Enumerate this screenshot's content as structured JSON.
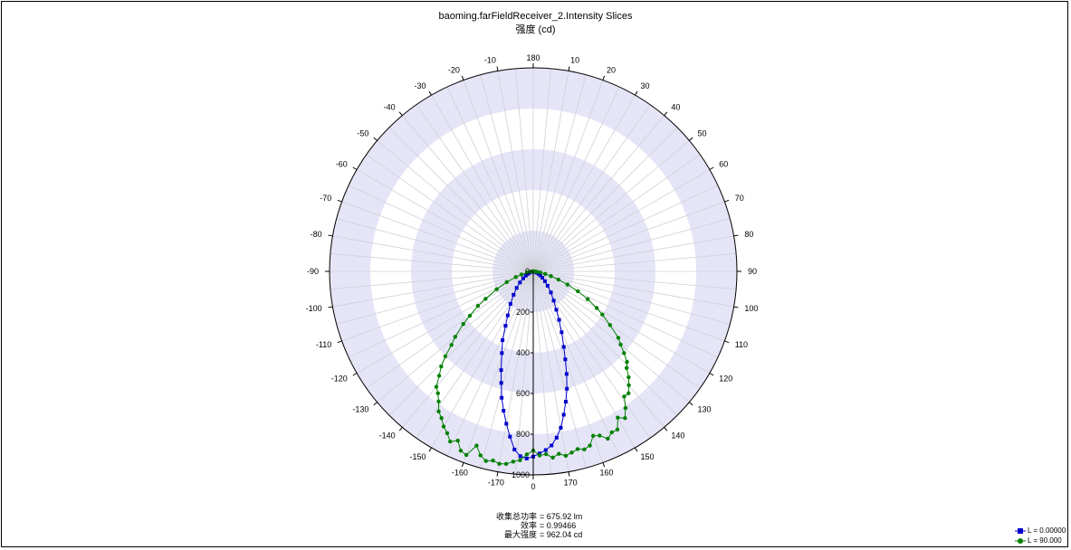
{
  "chart_data": {
    "type": "polar-line",
    "title": "baoming.farFieldReceiver_2.Intensity Slices",
    "subtitle": "强度 (cd)",
    "radial_ticks": [
      0,
      200,
      400,
      600,
      800,
      1000
    ],
    "radial_range": [
      0,
      1000
    ],
    "angle_ticks": [
      -170,
      -160,
      -150,
      -140,
      -130,
      -120,
      -110,
      -100,
      -90,
      -80,
      -70,
      -60,
      -50,
      -40,
      -30,
      -20,
      -10,
      0,
      10,
      20,
      30,
      40,
      50,
      60,
      70,
      80,
      90,
      100,
      110,
      120,
      130,
      140,
      150,
      160,
      170,
      180
    ],
    "grid": true,
    "legend_position": "bottom-right",
    "series": [
      {
        "name": "L = 0.00000",
        "color": "#0000cc",
        "marker": "square",
        "points": [
          [
            -90,
            0
          ],
          [
            -85,
            3
          ],
          [
            -80,
            7
          ],
          [
            -75,
            12
          ],
          [
            -70,
            20
          ],
          [
            -65,
            30
          ],
          [
            -60,
            42
          ],
          [
            -55,
            60
          ],
          [
            -50,
            85
          ],
          [
            -45,
            115
          ],
          [
            -40,
            150
          ],
          [
            -35,
            195
          ],
          [
            -30,
            250
          ],
          [
            -27,
            300
          ],
          [
            -24,
            370
          ],
          [
            -21,
            430
          ],
          [
            -18,
            510
          ],
          [
            -16,
            570
          ],
          [
            -14,
            640
          ],
          [
            -12,
            700
          ],
          [
            -10,
            760
          ],
          [
            -8,
            820
          ],
          [
            -6,
            880
          ],
          [
            -4,
            910
          ],
          [
            -2,
            920
          ],
          [
            0,
            910
          ],
          [
            2,
            895
          ],
          [
            4,
            880
          ],
          [
            6,
            860
          ],
          [
            8,
            825
          ],
          [
            10,
            780
          ],
          [
            12,
            720
          ],
          [
            14,
            660
          ],
          [
            16,
            600
          ],
          [
            18,
            530
          ],
          [
            20,
            460
          ],
          [
            22,
            400
          ],
          [
            25,
            330
          ],
          [
            28,
            270
          ],
          [
            31,
            220
          ],
          [
            35,
            175
          ],
          [
            40,
            135
          ],
          [
            45,
            100
          ],
          [
            50,
            75
          ],
          [
            55,
            55
          ],
          [
            60,
            40
          ],
          [
            65,
            28
          ],
          [
            70,
            18
          ],
          [
            75,
            11
          ],
          [
            80,
            6
          ],
          [
            85,
            3
          ],
          [
            90,
            0
          ]
        ]
      },
      {
        "name": "L = 90.000",
        "color": "#008000",
        "marker": "circle",
        "points": [
          [
            -90,
            0
          ],
          [
            -85,
            10
          ],
          [
            -80,
            30
          ],
          [
            -75,
            60
          ],
          [
            -72,
            90
          ],
          [
            -68,
            140
          ],
          [
            -64,
            200
          ],
          [
            -60,
            270
          ],
          [
            -58,
            320
          ],
          [
            -55,
            380
          ],
          [
            -53,
            430
          ],
          [
            -50,
            500
          ],
          [
            -48,
            540
          ],
          [
            -46,
            600
          ],
          [
            -44,
            650
          ],
          [
            -42,
            690
          ],
          [
            -40,
            740
          ],
          [
            -38,
            760
          ],
          [
            -36,
            790
          ],
          [
            -34,
            830
          ],
          [
            -32,
            850
          ],
          [
            -30,
            880
          ],
          [
            -28,
            900
          ],
          [
            -26,
            930
          ],
          [
            -24,
            910
          ],
          [
            -22,
            950
          ],
          [
            -20,
            960
          ],
          [
            -18,
            900
          ],
          [
            -16,
            940
          ],
          [
            -14,
            960
          ],
          [
            -12,
            950
          ],
          [
            -10,
            960
          ],
          [
            -8,
            955
          ],
          [
            -6,
            940
          ],
          [
            -4,
            930
          ],
          [
            -2,
            900
          ],
          [
            0,
            880
          ],
          [
            2,
            905
          ],
          [
            4,
            900
          ],
          [
            6,
            920
          ],
          [
            8,
            905
          ],
          [
            10,
            920
          ],
          [
            12,
            910
          ],
          [
            14,
            900
          ],
          [
            16,
            910
          ],
          [
            18,
            900
          ],
          [
            20,
            860
          ],
          [
            22,
            870
          ],
          [
            24,
            900
          ],
          [
            26,
            880
          ],
          [
            28,
            880
          ],
          [
            30,
            830
          ],
          [
            32,
            850
          ],
          [
            34,
            810
          ],
          [
            36,
            760
          ],
          [
            38,
            760
          ],
          [
            40,
            730
          ],
          [
            42,
            700
          ],
          [
            44,
            660
          ],
          [
            46,
            640
          ],
          [
            48,
            600
          ],
          [
            50,
            560
          ],
          [
            52,
            530
          ],
          [
            55,
            460
          ],
          [
            58,
            400
          ],
          [
            60,
            360
          ],
          [
            63,
            300
          ],
          [
            66,
            240
          ],
          [
            69,
            180
          ],
          [
            72,
            130
          ],
          [
            75,
            90
          ],
          [
            78,
            60
          ],
          [
            81,
            35
          ],
          [
            84,
            18
          ],
          [
            87,
            7
          ],
          [
            90,
            0
          ]
        ]
      }
    ]
  },
  "stats": [
    {
      "label": "收集总功率",
      "value": "= 675.92   lm"
    },
    {
      "label": "效率",
      "value": "= 0.99466"
    },
    {
      "label": "最大强度",
      "value": "= 962.04   cd"
    }
  ]
}
